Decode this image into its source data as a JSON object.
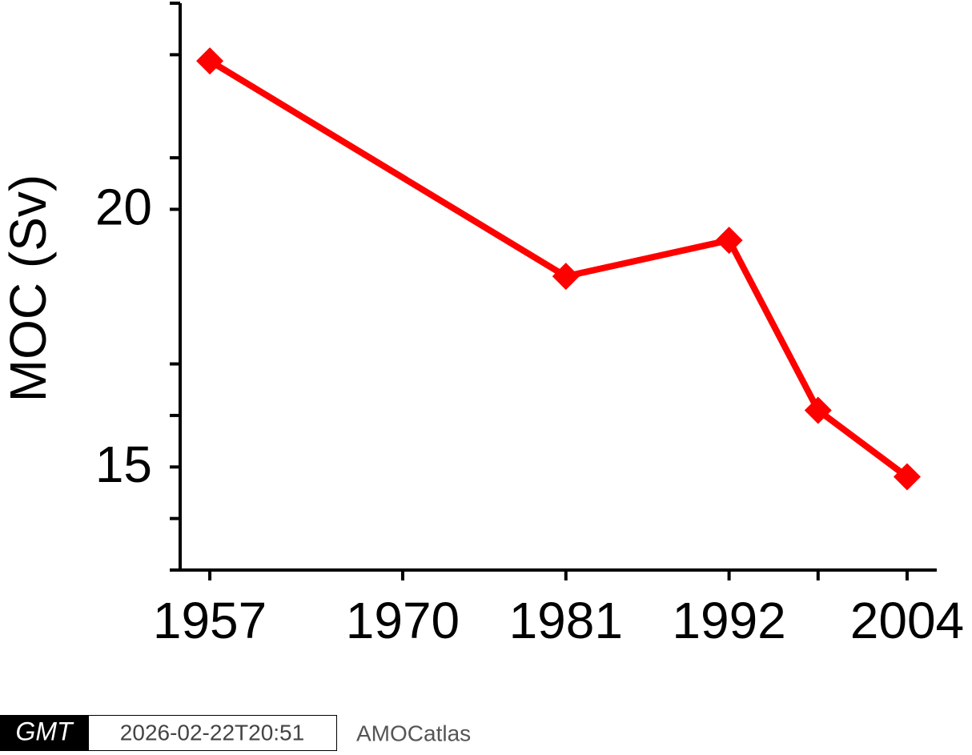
{
  "chart_data": {
    "type": "line",
    "y_label": "MOC (Sv)",
    "x": [
      1957,
      1981,
      1992,
      1998,
      2004
    ],
    "series": [
      {
        "color": "#ff0000",
        "values": [
          22.88,
          18.7,
          19.4,
          16.1,
          14.81
        ]
      }
    ],
    "xlim": [
      1955,
      2006
    ],
    "xticks": [
      1957,
      1970,
      1981,
      1992,
      2004
    ],
    "xminor_ticks": [
      1998
    ],
    "ylim": [
      13,
      24
    ],
    "yticks": [
      15,
      20
    ],
    "yminor_ticks": [
      13,
      14,
      16,
      17,
      21,
      23,
      24
    ]
  },
  "footer": {
    "logo": "GMT",
    "timestamp": "2026-02-22T20:51",
    "label": "AMOCatlas"
  }
}
